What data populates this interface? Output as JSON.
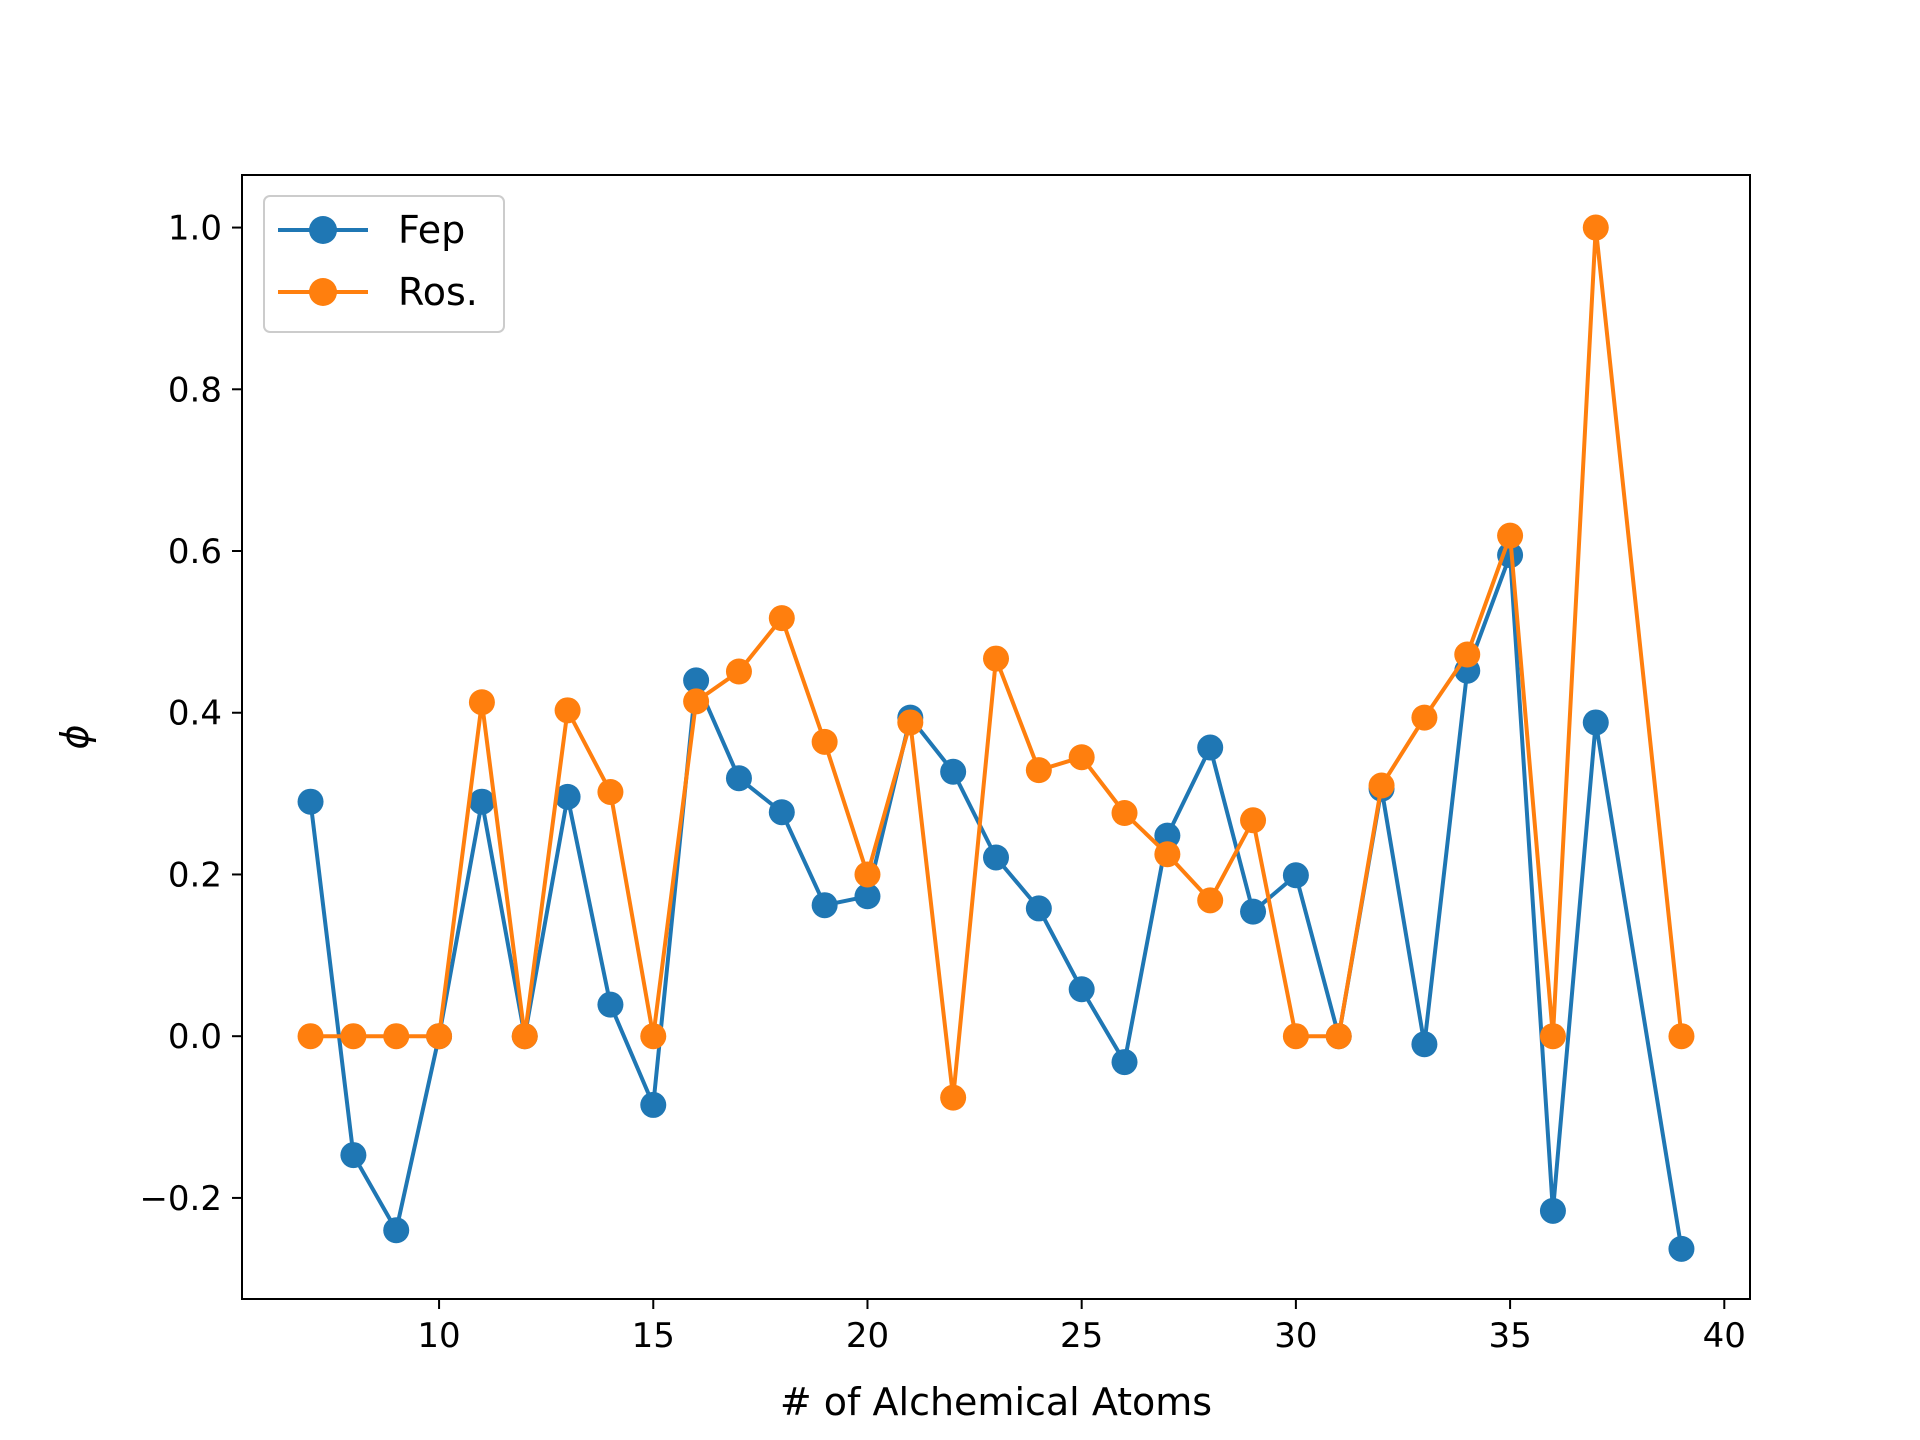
{
  "chart_data": {
    "type": "line",
    "xlabel": "# of Alchemical Atoms",
    "ylabel": "ϕ",
    "xlim": [
      5.4,
      40.6
    ],
    "ylim": [
      -0.325,
      1.065
    ],
    "xticks": [
      10,
      15,
      20,
      25,
      30,
      35,
      40
    ],
    "yticks": [
      -0.2,
      0.0,
      0.2,
      0.4,
      0.6,
      0.8,
      1.0
    ],
    "xtick_labels": [
      "10",
      "15",
      "20",
      "25",
      "30",
      "35",
      "40"
    ],
    "ytick_labels": [
      "−0.2",
      "0.0",
      "0.2",
      "0.4",
      "0.6",
      "0.8",
      "1.0"
    ],
    "grid": false,
    "legend_position": "top-left",
    "x": [
      7,
      8,
      9,
      10,
      11,
      12,
      13,
      14,
      15,
      16,
      17,
      18,
      19,
      20,
      21,
      22,
      23,
      24,
      25,
      26,
      27,
      28,
      29,
      30,
      31,
      32,
      33,
      34,
      35,
      36,
      37,
      39
    ],
    "series": [
      {
        "name": "Fep",
        "color": "#1f77b4",
        "values": [
          0.29,
          -0.147,
          -0.24,
          0.0,
          0.29,
          0.0,
          0.296,
          0.039,
          -0.085,
          0.44,
          0.319,
          0.277,
          0.162,
          0.173,
          0.394,
          0.327,
          0.221,
          0.158,
          0.058,
          -0.032,
          0.248,
          0.357,
          0.154,
          0.199,
          0.0,
          0.306,
          -0.01,
          0.452,
          0.595,
          -0.216,
          0.388,
          -0.263
        ]
      },
      {
        "name": "Ros.",
        "color": "#ff7f0e",
        "values": [
          0.0,
          0.0,
          0.0,
          0.0,
          0.413,
          0.0,
          0.403,
          0.302,
          0.0,
          0.414,
          0.451,
          0.517,
          0.364,
          0.2,
          0.388,
          -0.076,
          0.467,
          0.329,
          0.345,
          0.276,
          0.225,
          0.168,
          0.267,
          0.0,
          0.0,
          0.31,
          0.394,
          0.472,
          0.619,
          0.0,
          1.0,
          0.0
        ]
      }
    ]
  }
}
